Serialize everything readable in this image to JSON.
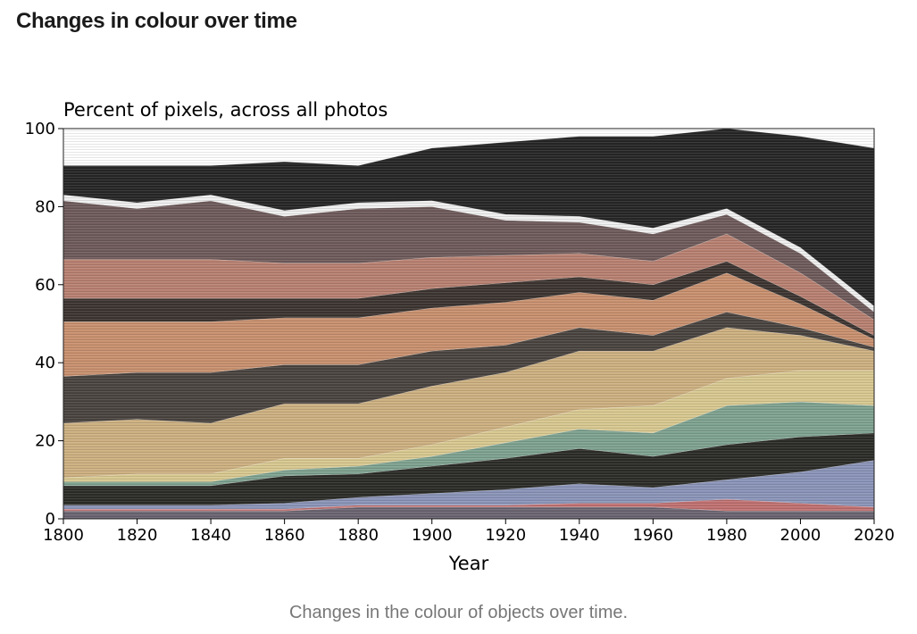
{
  "page": {
    "title": "Changes in colour over time",
    "caption": "Changes in the colour of objects over time."
  },
  "chart_data": {
    "type": "area",
    "title": "Percent of pixels, across all photos",
    "xlabel": "Year",
    "ylabel": "",
    "xlim": [
      1800,
      2020
    ],
    "ylim": [
      0,
      100
    ],
    "x_ticks": [
      "1800",
      "1820",
      "1840",
      "1860",
      "1880",
      "1900",
      "1920",
      "1940",
      "1960",
      "1980",
      "2000",
      "2020"
    ],
    "y_ticks": [
      "0",
      "20",
      "40",
      "60",
      "80",
      "100"
    ],
    "grid": false,
    "legend": "none",
    "x": [
      1800,
      1820,
      1840,
      1860,
      1880,
      1900,
      1920,
      1940,
      1960,
      1980,
      2000,
      2020
    ],
    "series": [
      {
        "color": "#6a6470",
        "values": [
          2,
          2,
          2,
          2,
          3,
          3,
          3,
          3,
          3,
          2,
          2,
          2
        ]
      },
      {
        "color": "#c07070",
        "values": [
          0.5,
          0.5,
          0.5,
          0.5,
          0.5,
          0.5,
          0.5,
          1,
          1,
          3,
          2,
          1
        ]
      },
      {
        "color": "#8a94b8",
        "values": [
          1,
          1,
          1,
          1.5,
          2,
          3,
          4,
          5,
          4,
          5,
          8,
          12
        ]
      },
      {
        "color": "#2b2b28",
        "values": [
          5,
          5,
          5,
          7,
          6,
          7,
          8,
          9,
          8,
          9,
          9,
          7
        ]
      },
      {
        "color": "#7ea290",
        "values": [
          1,
          1,
          1,
          1.5,
          2,
          2.5,
          4,
          5,
          6,
          10,
          9,
          7
        ]
      },
      {
        "color": "#d8c890",
        "values": [
          1,
          2,
          2,
          3,
          2,
          3,
          4,
          5,
          7,
          7,
          8,
          9
        ]
      },
      {
        "color": "#cdb080",
        "values": [
          14,
          14,
          13,
          14,
          14,
          15,
          14,
          15,
          14,
          13,
          9,
          5
        ]
      },
      {
        "color": "#4a4440",
        "values": [
          12,
          12,
          13,
          10,
          10,
          9,
          7,
          6,
          4,
          4,
          2,
          1
        ]
      },
      {
        "color": "#c8906e",
        "values": [
          14,
          13,
          13,
          12,
          12,
          11,
          11,
          9,
          9,
          10,
          6,
          2
        ]
      },
      {
        "color": "#3c3430",
        "values": [
          6,
          6,
          6,
          5,
          5,
          5,
          5,
          4,
          4,
          3,
          2,
          1
        ]
      },
      {
        "color": "#b88070",
        "values": [
          10,
          10,
          10,
          9,
          9,
          8,
          7,
          6,
          6,
          7,
          6,
          4
        ]
      },
      {
        "color": "#6e5a5a",
        "values": [
          15,
          13,
          15,
          12,
          14,
          13,
          9,
          8,
          7,
          5,
          5,
          2
        ]
      },
      {
        "color": "#efefef",
        "values": [
          1.5,
          1.5,
          1.5,
          1.5,
          1.5,
          1.5,
          1.5,
          1.5,
          1.5,
          1.5,
          1.5,
          1.5
        ]
      },
      {
        "color": "#262626",
        "values": [
          7.5,
          9.5,
          7.5,
          12.5,
          9.5,
          13.5,
          18.5,
          20.5,
          23.5,
          20.5,
          28.5,
          40.5
        ]
      }
    ]
  }
}
